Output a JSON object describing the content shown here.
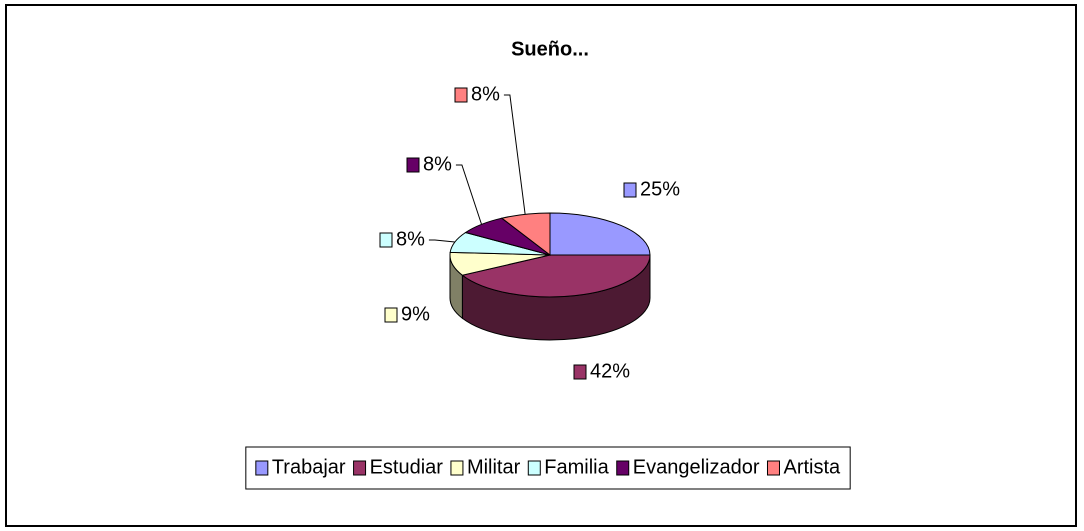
{
  "chart_data": {
    "type": "pie3d",
    "title": "Sueño...",
    "categories": [
      "Trabajar",
      "Estudiar",
      "Militar",
      "Familia",
      "Evangelizador",
      "Artista"
    ],
    "values": [
      25,
      42,
      9,
      8,
      8,
      8
    ],
    "value_labels": [
      "25%",
      "42%",
      "9%",
      "8%",
      "8%",
      "8%"
    ],
    "colors": [
      "#9999ff",
      "#993366",
      "#ffffcc",
      "#ccffff",
      "#660066",
      "#ff8080"
    ],
    "legend": "bottom"
  }
}
